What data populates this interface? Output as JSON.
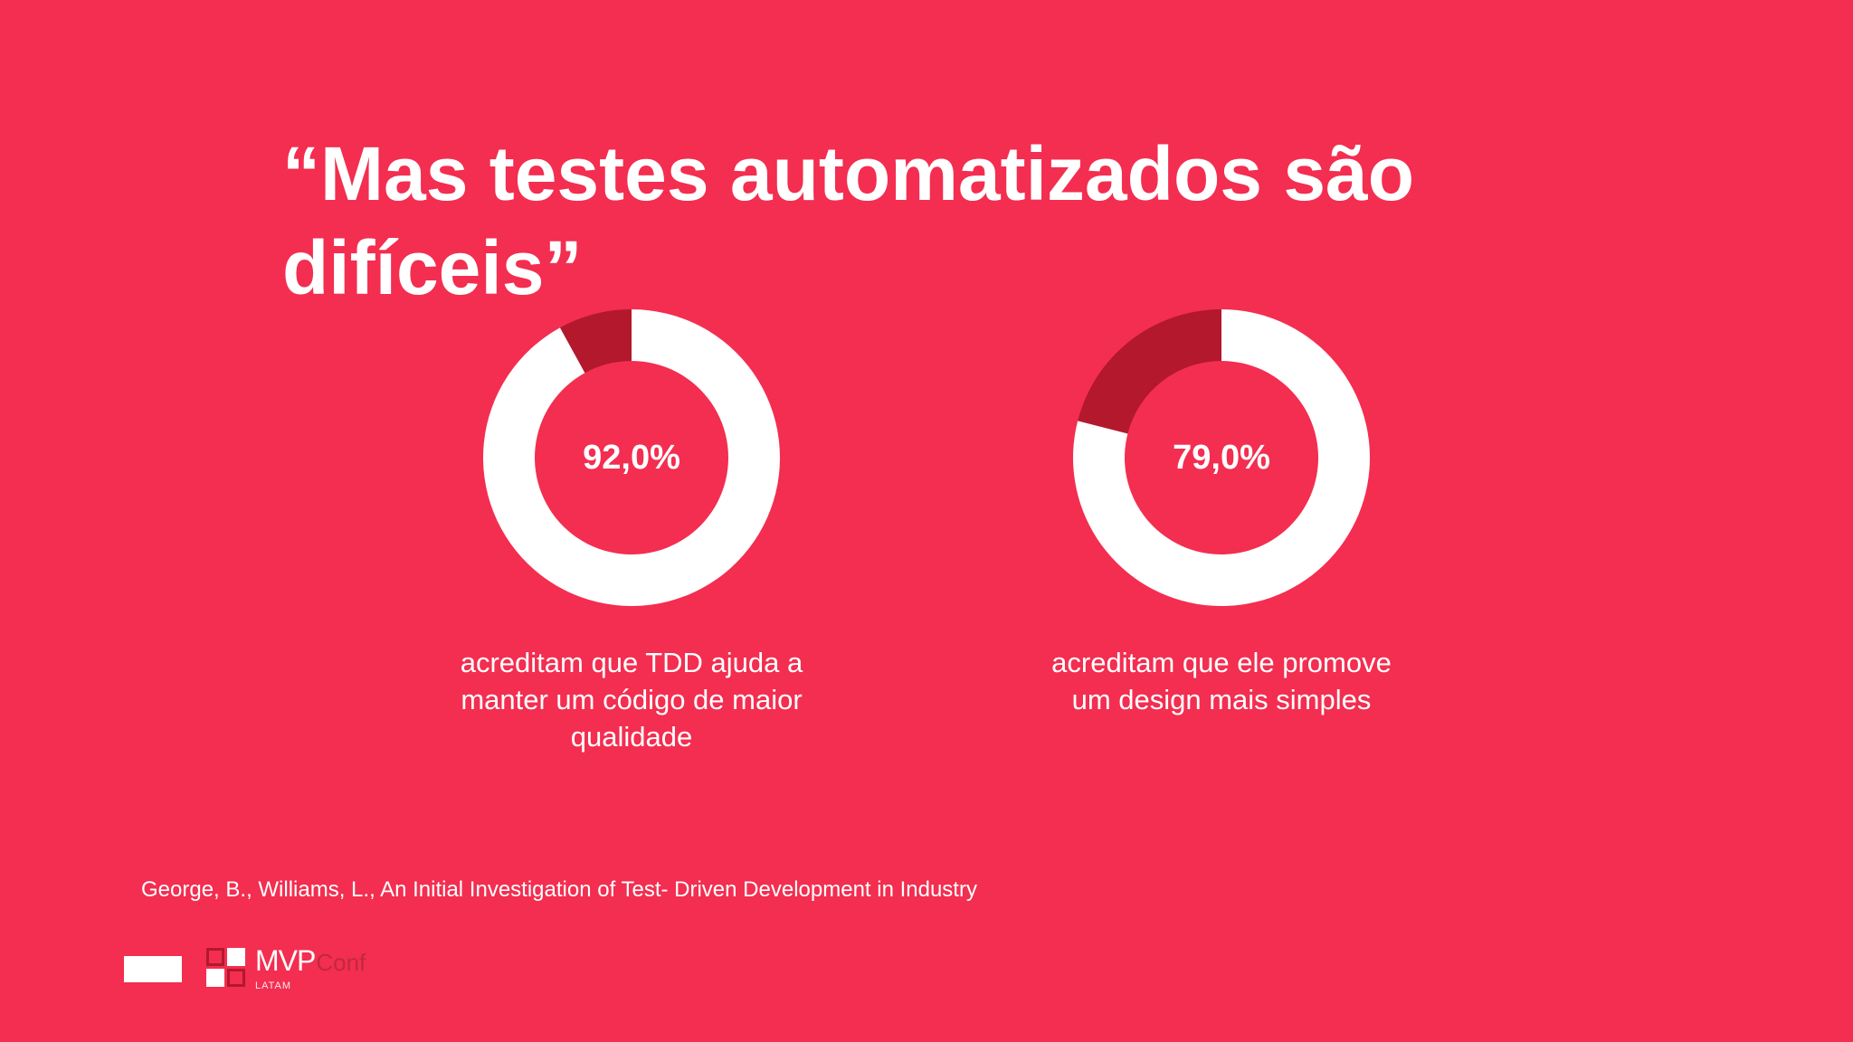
{
  "slide": {
    "title": "“Mas testes automatizados são difíceis”",
    "citation": "George, B., Williams, L., An Initial Investigation of Test- Driven Development in Industry"
  },
  "logo": {
    "main": "MVP",
    "sub": "Conf",
    "region": "LATAM"
  },
  "colors": {
    "background": "#f32e50",
    "ring_primary": "#ffffff",
    "ring_remainder": "#b3182d"
  },
  "chart_data": [
    {
      "type": "pie",
      "subtype": "donut",
      "values": [
        92.0,
        8.0
      ],
      "value_label": "92,0%",
      "caption": "acreditam que TDD ajuda a manter um código de maior qualidade"
    },
    {
      "type": "pie",
      "subtype": "donut",
      "values": [
        79.0,
        21.0
      ],
      "value_label": "79,0%",
      "caption": "acreditam que ele promove um design mais simples"
    }
  ]
}
